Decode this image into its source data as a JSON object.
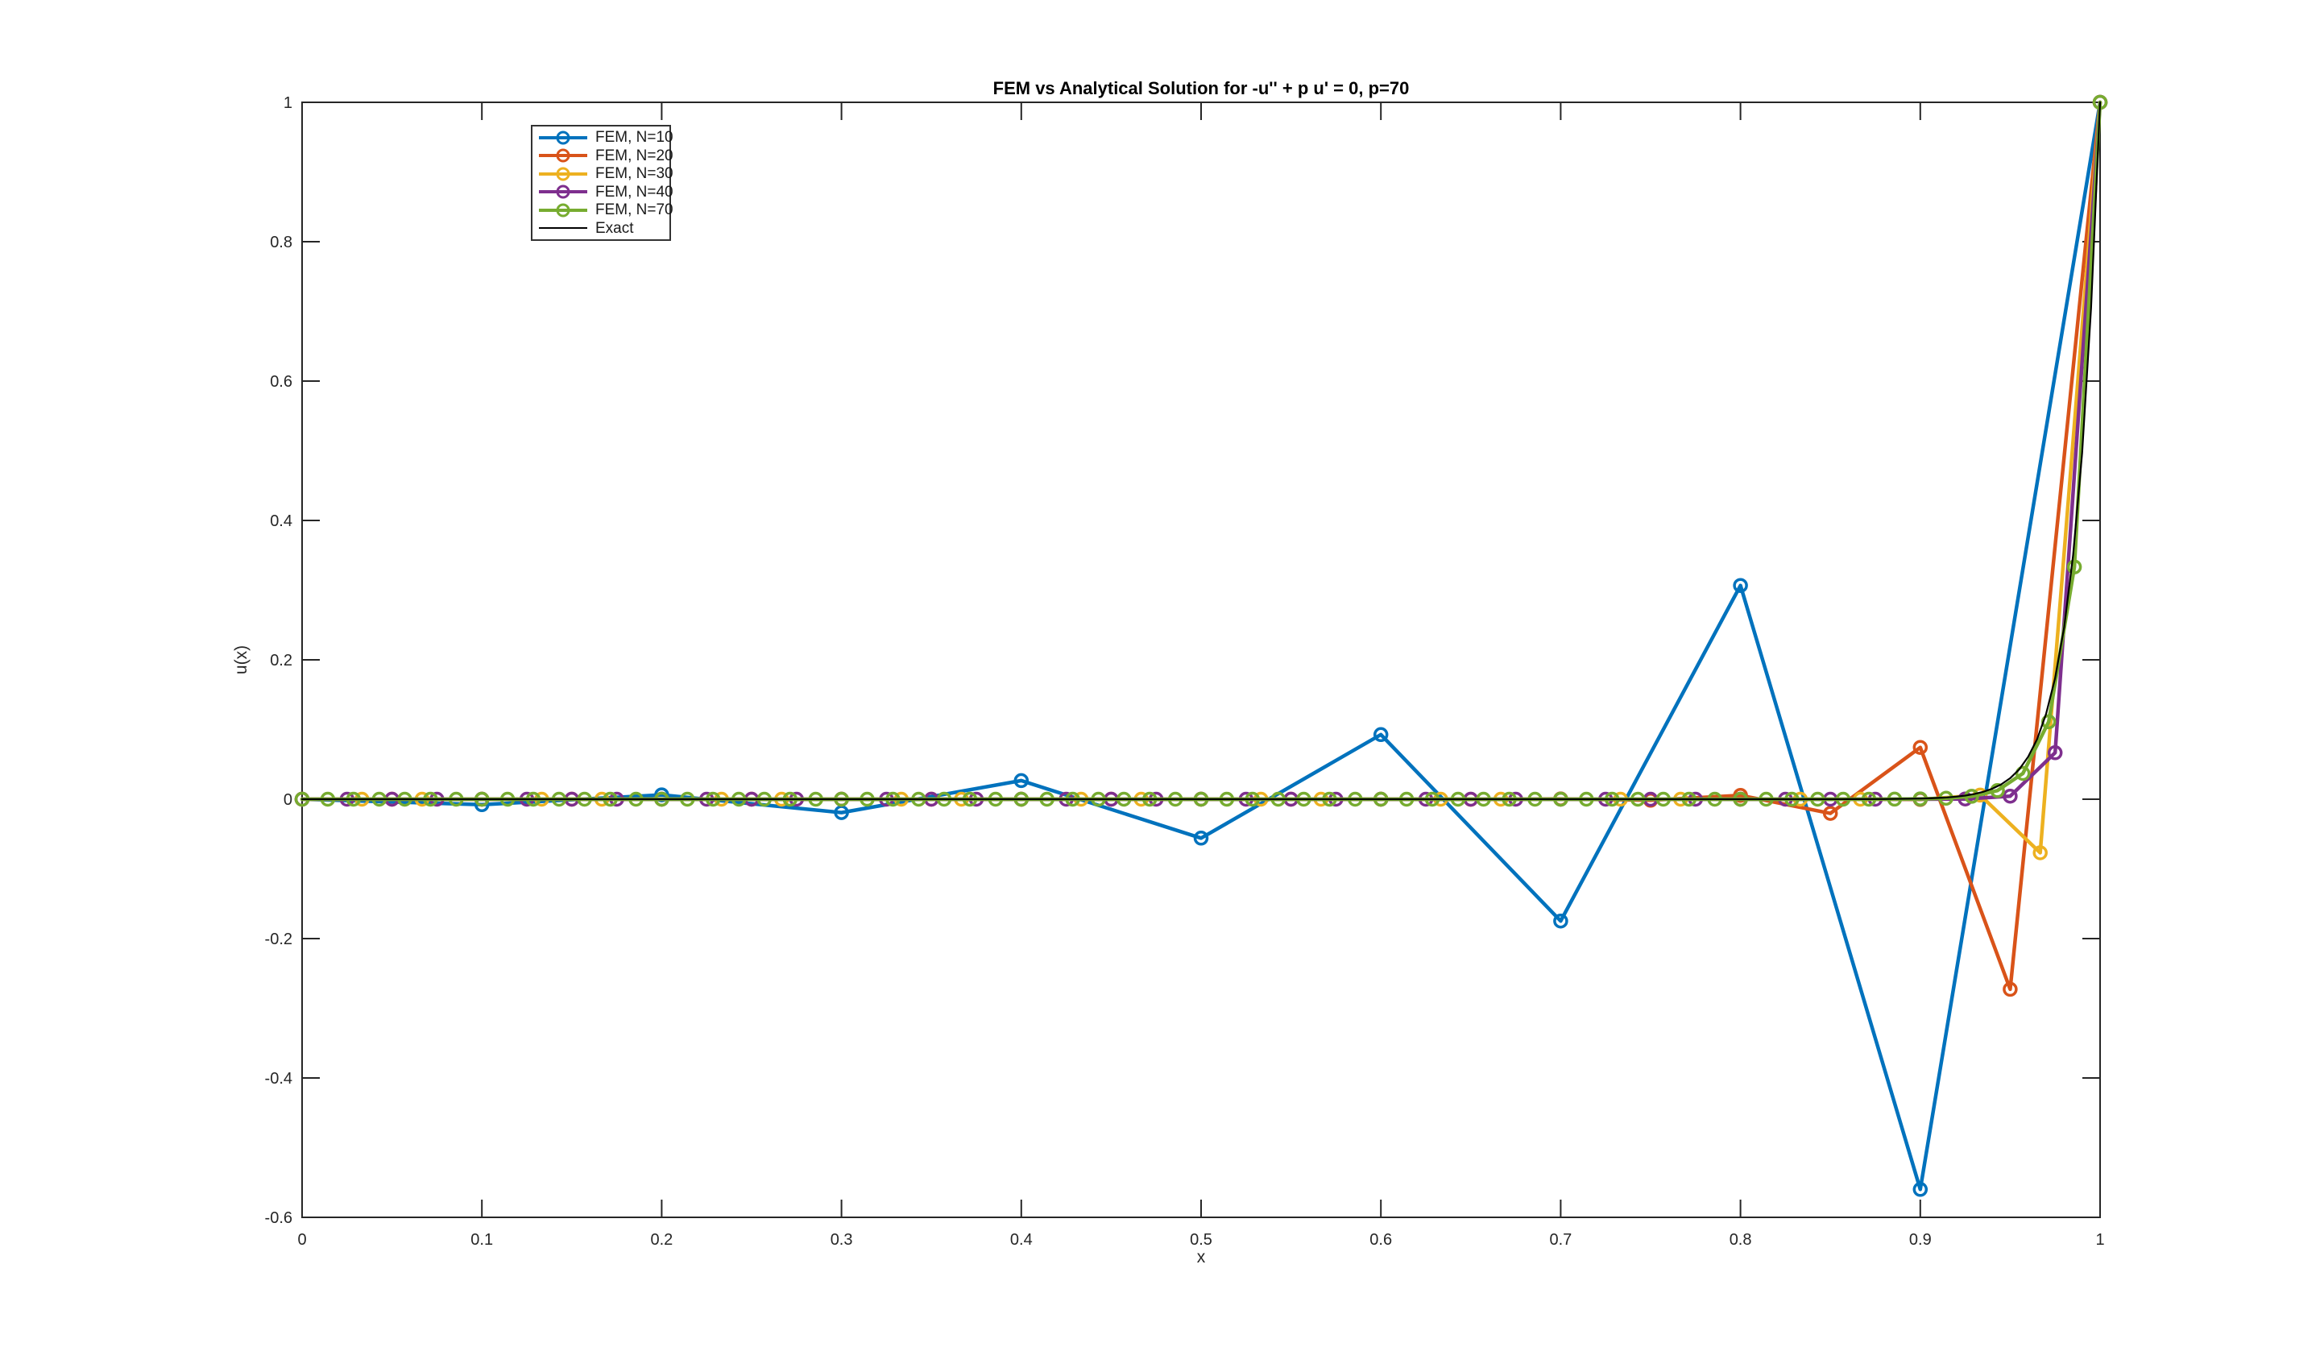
{
  "figure": {
    "background": "#ffffff",
    "text_color": "#262626",
    "axis_color": "#262626"
  },
  "chart_data": {
    "type": "line",
    "title": "FEM vs Analytical Solution for -u'' + p u' = 0,  p=70",
    "xlabel": "x",
    "ylabel": "u(x)",
    "xlim": [
      0,
      1
    ],
    "ylim": [
      -0.6,
      1
    ],
    "xticks": [
      0,
      0.1,
      0.2,
      0.3,
      0.4,
      0.5,
      0.6,
      0.7,
      0.8,
      0.9,
      1
    ],
    "xtick_labels": [
      "0",
      "0.1",
      "0.2",
      "0.3",
      "0.4",
      "0.5",
      "0.6",
      "0.7",
      "0.8",
      "0.9",
      "1"
    ],
    "yticks": [
      -0.6,
      -0.4,
      -0.2,
      0,
      0.2,
      0.4,
      0.6,
      0.8,
      1
    ],
    "ytick_labels": [
      "-0.6",
      "-0.4",
      "-0.2",
      "0",
      "0.2",
      "0.4",
      "0.6",
      "0.8",
      "1"
    ],
    "grid": false,
    "legend": {
      "position": "upper-left-inset",
      "border_color": "#333333"
    },
    "series": [
      {
        "name": "FEM, N=10",
        "color": "#0072BD",
        "marker": "o",
        "line_width": 4.5,
        "x": [
          0,
          0.1,
          0.2,
          0.3,
          0.4,
          0.5,
          0.6,
          0.7,
          0.8,
          0.9,
          1
        ],
        "y": [
          0,
          -0.00786,
          0.00629,
          -0.01919,
          0.02667,
          -0.05588,
          0.09272,
          -0.17476,
          0.3067,
          -0.55992,
          1
        ]
      },
      {
        "name": "FEM, N=20",
        "color": "#D95319",
        "marker": "o",
        "line_width": 4.5,
        "x": [
          0,
          0.05,
          0.1,
          0.15,
          0.2,
          0.25,
          0.3,
          0.35,
          0.4,
          0.45,
          0.5,
          0.55,
          0.6,
          0.65,
          0.7,
          0.75,
          0.8,
          0.85,
          0.9,
          0.95,
          1
        ],
        "y": [
          0,
          0,
          0,
          0,
          0,
          0,
          0,
          0,
          0,
          0,
          0,
          0,
          3e-05,
          -0.00011,
          0.00041,
          -0.00151,
          0.00553,
          -0.02029,
          0.07438,
          -0.27273,
          1
        ]
      },
      {
        "name": "FEM, N=30",
        "color": "#EDB120",
        "marker": "o",
        "line_width": 4.5,
        "x": [
          0,
          0.0333,
          0.0667,
          0.1,
          0.1333,
          0.1667,
          0.2,
          0.2333,
          0.2667,
          0.3,
          0.3333,
          0.3667,
          0.4,
          0.4333,
          0.4667,
          0.5,
          0.5333,
          0.5667,
          0.6,
          0.6333,
          0.6667,
          0.7,
          0.7333,
          0.7667,
          0.8,
          0.8333,
          0.8667,
          0.9,
          0.9333,
          0.9667,
          1
        ],
        "y": [
          0,
          0,
          0,
          0,
          0,
          0,
          0,
          0,
          0,
          0,
          0,
          0,
          0,
          0,
          0,
          0,
          0,
          0,
          0,
          0,
          0,
          0,
          0,
          0,
          0,
          0,
          4e-05,
          -0.00046,
          0.00592,
          -0.07692,
          1
        ]
      },
      {
        "name": "FEM, N=40",
        "color": "#7E2F8E",
        "marker": "o",
        "line_width": 4.5,
        "x": [
          0,
          0.025,
          0.05,
          0.075,
          0.1,
          0.125,
          0.15,
          0.175,
          0.2,
          0.225,
          0.25,
          0.275,
          0.3,
          0.325,
          0.35,
          0.375,
          0.4,
          0.425,
          0.45,
          0.475,
          0.5,
          0.525,
          0.55,
          0.575,
          0.6,
          0.625,
          0.65,
          0.675,
          0.7,
          0.725,
          0.75,
          0.775,
          0.8,
          0.825,
          0.85,
          0.875,
          0.9,
          0.925,
          0.95,
          0.975,
          1
        ],
        "y": [
          0,
          0,
          0,
          0,
          0,
          0,
          0,
          0,
          0,
          0,
          0,
          0,
          0,
          0,
          0,
          0,
          0,
          0,
          0,
          0,
          0,
          0,
          0,
          0,
          0,
          0,
          0,
          0,
          0,
          0,
          0,
          0,
          0,
          0,
          0,
          0,
          2e-05,
          0.0003,
          0.00444,
          0.06667,
          1
        ]
      },
      {
        "name": "FEM, N=70",
        "color": "#77AC30",
        "marker": "o",
        "line_width": 4.5,
        "x": [
          0,
          0.0143,
          0.0286,
          0.0429,
          0.0571,
          0.0714,
          0.0857,
          0.1,
          0.1143,
          0.1286,
          0.1429,
          0.1571,
          0.1714,
          0.1857,
          0.2,
          0.2143,
          0.2286,
          0.2429,
          0.2571,
          0.2714,
          0.2857,
          0.3,
          0.3143,
          0.3286,
          0.3429,
          0.3571,
          0.3714,
          0.3857,
          0.4,
          0.4143,
          0.4286,
          0.4429,
          0.4571,
          0.4714,
          0.4857,
          0.5,
          0.5143,
          0.5286,
          0.5429,
          0.5571,
          0.5714,
          0.5857,
          0.6,
          0.6143,
          0.6286,
          0.6429,
          0.6571,
          0.6714,
          0.6857,
          0.7,
          0.7143,
          0.7286,
          0.7429,
          0.7571,
          0.7714,
          0.7857,
          0.8,
          0.8143,
          0.8286,
          0.8429,
          0.8571,
          0.8714,
          0.8857,
          0.9,
          0.9143,
          0.9286,
          0.9429,
          0.9571,
          0.9714,
          0.9857,
          1
        ],
        "y": [
          0,
          0,
          0,
          0,
          0,
          0,
          0,
          0,
          0,
          0,
          0,
          0,
          0,
          0,
          0,
          0,
          0,
          0,
          0,
          0,
          0,
          0,
          0,
          0,
          0,
          0,
          0,
          0,
          0,
          0,
          0,
          0,
          0,
          0,
          0,
          0,
          0,
          0,
          0,
          0,
          0,
          0,
          0,
          0,
          0,
          0,
          0,
          0,
          0,
          0,
          0,
          0,
          0,
          0,
          0,
          0,
          0,
          0,
          0,
          0,
          0,
          5e-05,
          0.00015,
          0.00046,
          0.00137,
          0.00412,
          0.01235,
          0.03704,
          0.11111,
          0.33333,
          1
        ]
      },
      {
        "name": "Exact",
        "color": "#000000",
        "marker": "none",
        "line_width": 2.2,
        "x": [
          0,
          0.2,
          0.4,
          0.6,
          0.7,
          0.8,
          0.85,
          0.86,
          0.88,
          0.9,
          0.905,
          0.91,
          0.915,
          0.92,
          0.925,
          0.93,
          0.935,
          0.94,
          0.945,
          0.95,
          0.955,
          0.96,
          0.965,
          0.97,
          0.975,
          0.98,
          0.985,
          0.99,
          0.995,
          1
        ],
        "y": [
          0,
          0,
          0,
          0,
          0,
          0,
          0,
          0.0001,
          0.0002,
          0.0009,
          0.0013,
          0.0018,
          0.0026,
          0.0037,
          0.0052,
          0.0074,
          0.0106,
          0.015,
          0.0213,
          0.0302,
          0.0428,
          0.0608,
          0.0863,
          0.1225,
          0.1738,
          0.2466,
          0.3499,
          0.4966,
          0.7047,
          1
        ]
      }
    ]
  }
}
